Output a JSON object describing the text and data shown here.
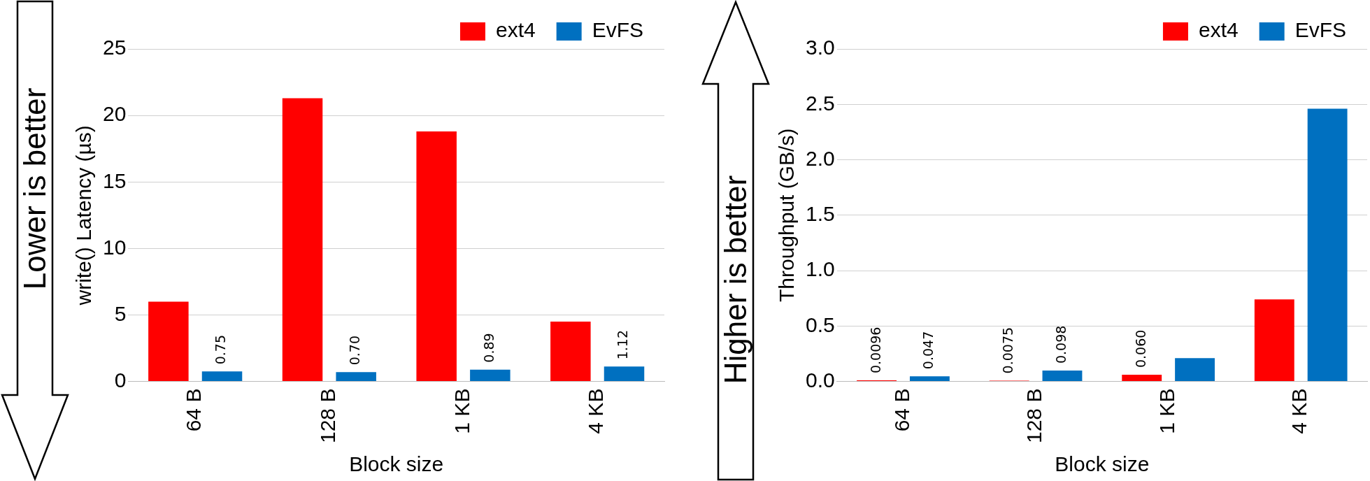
{
  "chart_data": [
    {
      "type": "bar",
      "xlabel": "Block size",
      "ylabel": "write() Latency (µs)",
      "categories": [
        "64 B",
        "128 B",
        "1 KB",
        "4 KB"
      ],
      "series": [
        {
          "name": "ext4",
          "color": "#ff0000",
          "values": [
            6.0,
            21.3,
            18.8,
            4.5
          ]
        },
        {
          "name": "EvFS",
          "color": "#0070c0",
          "values": [
            0.75,
            0.7,
            0.89,
            1.12
          ],
          "value_labels": [
            "0.75",
            "0.70",
            "0.89",
            "1.12"
          ]
        }
      ],
      "ylim": [
        0,
        25
      ],
      "yticks": [
        0,
        5,
        10,
        15,
        20,
        25
      ],
      "grid": "y",
      "legend": "top",
      "annotations": [
        "Lower is better"
      ]
    },
    {
      "type": "bar",
      "xlabel": "Block size",
      "ylabel": "Throughput (GB/s)",
      "categories": [
        "64 B",
        "128 B",
        "1 KB",
        "4 KB"
      ],
      "series": [
        {
          "name": "ext4",
          "color": "#ff0000",
          "values": [
            0.0096,
            0.0075,
            0.06,
            0.74
          ],
          "value_labels": [
            "0.0096",
            "0.0075",
            "0.060",
            null
          ]
        },
        {
          "name": "EvFS",
          "color": "#0070c0",
          "values": [
            0.047,
            0.098,
            0.21,
            2.46
          ],
          "value_labels": [
            "0.047",
            "0.098",
            null,
            null
          ]
        }
      ],
      "ylim": [
        0,
        3
      ],
      "yticks": [
        {
          "value": 0,
          "label": "0.0"
        },
        {
          "value": 0.5,
          "label": "0.5"
        },
        {
          "value": 1,
          "label": "1.0"
        },
        {
          "value": 1.5,
          "label": "1.5"
        },
        {
          "value": 2,
          "label": "2.0"
        },
        {
          "value": 2.5,
          "label": "2.5"
        },
        {
          "value": 3,
          "label": "3.0"
        }
      ],
      "grid": "y",
      "legend": "top",
      "annotations": [
        "Higher is better"
      ]
    }
  ]
}
